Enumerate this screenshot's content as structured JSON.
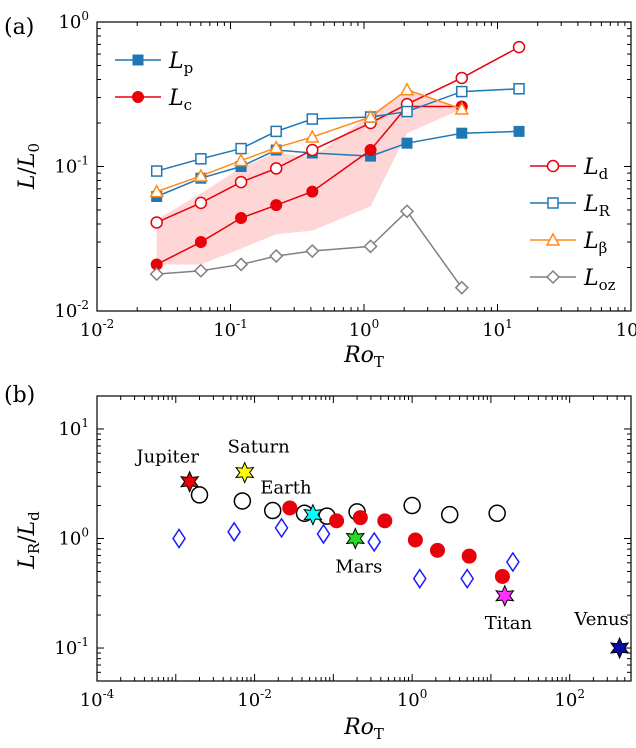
{
  "figure": {
    "panels": [
      {
        "label": "(a)"
      },
      {
        "label": "(b)"
      }
    ]
  },
  "chart_data": [
    {
      "type": "line",
      "panel": "(a)",
      "xscale": "log",
      "yscale": "log",
      "xlim": [
        0.01,
        100
      ],
      "ylim": [
        0.01,
        1
      ],
      "xticks": [
        {
          "value": 0.01,
          "base": "10",
          "exp": "-2"
        },
        {
          "value": 0.1,
          "base": "10",
          "exp": "-1"
        },
        {
          "value": 1,
          "base": "10",
          "exp": "0"
        },
        {
          "value": 10,
          "base": "10",
          "exp": "1"
        },
        {
          "value": 100,
          "base": "10",
          "exp": "2"
        }
      ],
      "yticks": [
        {
          "value": 0.01,
          "base": "10",
          "exp": "-2"
        },
        {
          "value": 0.1,
          "base": "10",
          "exp": "-1"
        },
        {
          "value": 1,
          "base": "10",
          "exp": "0"
        }
      ],
      "xlabel": {
        "main": "Ro",
        "sub": "T"
      },
      "ylabel": {
        "main": "L",
        "slash": "/",
        "main2": "L",
        "sub2": "0"
      },
      "shaded_band": {
        "color": "#ffd6d6",
        "x": [
          0.028,
          0.06,
          0.12,
          0.22,
          0.41,
          1.12,
          2.1,
          5.4
        ],
        "upper": [
          0.043,
          0.065,
          0.098,
          0.125,
          0.115,
          0.23,
          0.34,
          0.25
        ],
        "lower": [
          0.021,
          0.021,
          0.027,
          0.034,
          0.036,
          0.053,
          0.17,
          0.25
        ]
      },
      "series": [
        {
          "key": "Lp",
          "legend_main": "L",
          "legend_sub": "p",
          "color": "#1f77b4",
          "marker": "square-filled",
          "x": [
            0.028,
            0.06,
            0.12,
            0.22,
            0.41,
            1.12,
            2.1,
            5.4,
            14.5
          ],
          "y": [
            0.062,
            0.083,
            0.1,
            0.13,
            0.124,
            0.118,
            0.145,
            0.17,
            0.175
          ]
        },
        {
          "key": "Lc",
          "legend_main": "L",
          "legend_sub": "c",
          "color": "#e8000b",
          "marker": "circle-filled",
          "x": [
            0.028,
            0.06,
            0.12,
            0.22,
            0.41,
            1.12,
            2.1,
            5.4
          ],
          "y": [
            0.021,
            0.03,
            0.044,
            0.054,
            0.067,
            0.13,
            0.26,
            0.26
          ]
        },
        {
          "key": "Ld",
          "legend_main": "L",
          "legend_sub": "d",
          "color": "#e8000b",
          "marker": "circle-open",
          "x": [
            0.028,
            0.06,
            0.12,
            0.22,
            0.41,
            1.12,
            2.1,
            5.4,
            14.5
          ],
          "y": [
            0.041,
            0.056,
            0.078,
            0.097,
            0.13,
            0.2,
            0.27,
            0.41,
            0.67
          ]
        },
        {
          "key": "LR",
          "legend_main": "L",
          "legend_sub": "R",
          "color": "#1f77b4",
          "marker": "square-open",
          "x": [
            0.028,
            0.06,
            0.12,
            0.22,
            0.41,
            1.12,
            2.1,
            5.4,
            14.5
          ],
          "y": [
            0.093,
            0.113,
            0.133,
            0.175,
            0.213,
            0.22,
            0.24,
            0.33,
            0.345
          ]
        },
        {
          "key": "Lbeta",
          "legend_main": "L",
          "legend_sub": "β",
          "color": "#ff8c1a",
          "marker": "triangle-open",
          "x": [
            0.028,
            0.06,
            0.12,
            0.22,
            0.41,
            1.12,
            2.1,
            5.4
          ],
          "y": [
            0.067,
            0.086,
            0.11,
            0.135,
            0.16,
            0.22,
            0.34,
            0.25
          ]
        },
        {
          "key": "Loz",
          "legend_main": "L",
          "legend_sub": "oz",
          "color": "#808080",
          "marker": "diamond-open",
          "x": [
            0.028,
            0.06,
            0.12,
            0.22,
            0.41,
            1.12,
            2.1,
            5.4
          ],
          "y": [
            0.018,
            0.019,
            0.021,
            0.024,
            0.026,
            0.028,
            0.049,
            0.0145
          ]
        }
      ]
    },
    {
      "type": "scatter",
      "panel": "(b)",
      "xscale": "log",
      "yscale": "log",
      "xlim": [
        0.0001,
        600
      ],
      "ylim": [
        0.05,
        20
      ],
      "xticks": [
        {
          "value": 0.0001,
          "base": "10",
          "exp": "-4"
        },
        {
          "value": 0.01,
          "base": "10",
          "exp": "-2"
        },
        {
          "value": 1,
          "base": "10",
          "exp": "0"
        },
        {
          "value": 100,
          "base": "10",
          "exp": "2"
        }
      ],
      "yticks": [
        {
          "value": 0.1,
          "base": "10",
          "exp": "-1"
        },
        {
          "value": 1,
          "base": "10",
          "exp": "0"
        },
        {
          "value": 10,
          "base": "10",
          "exp": "1"
        }
      ],
      "xlabel": {
        "main": "Ro",
        "sub": "T"
      },
      "ylabel": {
        "main": "L",
        "sub": "R",
        "slash": "/",
        "main2": "L",
        "sub2": "d"
      },
      "series": [
        {
          "key": "open-circles",
          "color": "#000000",
          "marker": "circle-open",
          "x": [
            0.002,
            0.007,
            0.017,
            0.043,
            0.083,
            0.2,
            1.0,
            3.0,
            12.0
          ],
          "y": [
            2.5,
            2.2,
            1.8,
            1.7,
            1.6,
            1.75,
            2.0,
            1.65,
            1.7
          ]
        },
        {
          "key": "red-filled",
          "color": "#e8000b",
          "marker": "circle-filled",
          "x": [
            0.028,
            0.11,
            0.22,
            0.45,
            1.1,
            2.1,
            5.3,
            14.0
          ],
          "y": [
            1.9,
            1.45,
            1.55,
            1.45,
            0.97,
            0.78,
            0.69,
            0.45
          ]
        },
        {
          "key": "blue-diamonds",
          "color": "#1a1aff",
          "marker": "diamond-open",
          "x": [
            0.0011,
            0.0055,
            0.022,
            0.075,
            0.33,
            1.25,
            5.0,
            19.0
          ],
          "y": [
            1.0,
            1.15,
            1.25,
            1.1,
            0.93,
            0.43,
            0.43,
            0.61
          ]
        }
      ],
      "planets": [
        {
          "name": "Jupiter",
          "x": 0.0015,
          "y": 3.3,
          "color": "#e8000b"
        },
        {
          "name": "Saturn",
          "x": 0.0075,
          "y": 4.0,
          "color": "#ffff00"
        },
        {
          "name": "Earth",
          "x": 0.055,
          "y": 1.65,
          "color": "#00ffff"
        },
        {
          "name": "Mars",
          "x": 0.19,
          "y": 1.0,
          "color": "#22dd22"
        },
        {
          "name": "Titan",
          "x": 15.0,
          "y": 0.3,
          "color": "#ff33ff"
        },
        {
          "name": "Venus",
          "x": 430,
          "y": 0.1,
          "color": "#0a0aa8"
        }
      ]
    }
  ]
}
